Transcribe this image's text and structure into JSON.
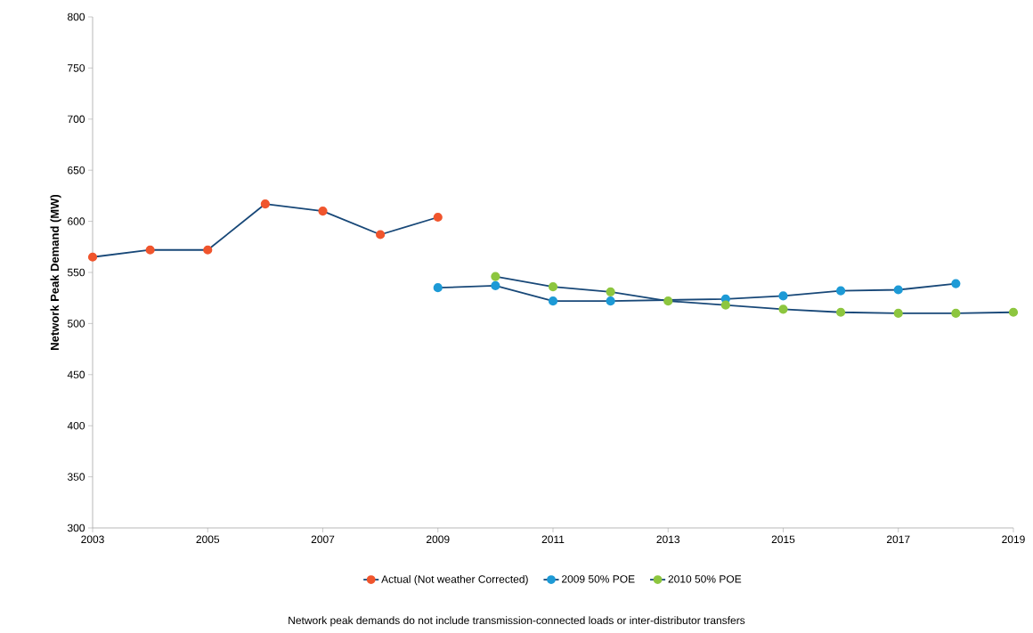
{
  "chart_data": {
    "type": "line",
    "ylabel": "Network Peak Demand (MW)",
    "xlim": [
      2003,
      2019
    ],
    "xticks": [
      2003,
      2005,
      2007,
      2009,
      2011,
      2013,
      2015,
      2017,
      2019
    ],
    "ylim": [
      300,
      800
    ],
    "yticks": [
      300,
      350,
      400,
      450,
      500,
      550,
      600,
      650,
      700,
      750,
      800
    ],
    "series": [
      {
        "name": "Actual (Not weather Corrected)",
        "color": "#f0552d",
        "x": [
          2003,
          2004,
          2005,
          2006,
          2007,
          2008,
          2009
        ],
        "values": [
          565,
          572,
          572,
          617,
          610,
          587,
          604
        ]
      },
      {
        "name": "2009 50% POE",
        "color": "#1d9ad6",
        "x": [
          2009,
          2010,
          2011,
          2012,
          2013,
          2014,
          2015,
          2016,
          2017,
          2018
        ],
        "values": [
          535,
          537,
          522,
          522,
          null,
          524,
          527,
          532,
          533,
          539
        ]
      },
      {
        "name": "2010 50% POE",
        "color": "#8dc63f",
        "x": [
          2010,
          2011,
          2012,
          2013,
          2014,
          2015,
          2016,
          2017,
          2018,
          2019
        ],
        "values": [
          546,
          536,
          531,
          522,
          518,
          514,
          511,
          510,
          510,
          511
        ]
      }
    ],
    "legend": "bottom",
    "marker": "circle",
    "line_style": "solid",
    "grid": false,
    "annotations": [
      "Network peak demands do not include transmission-connected loads or inter-distributor transfers"
    ]
  }
}
